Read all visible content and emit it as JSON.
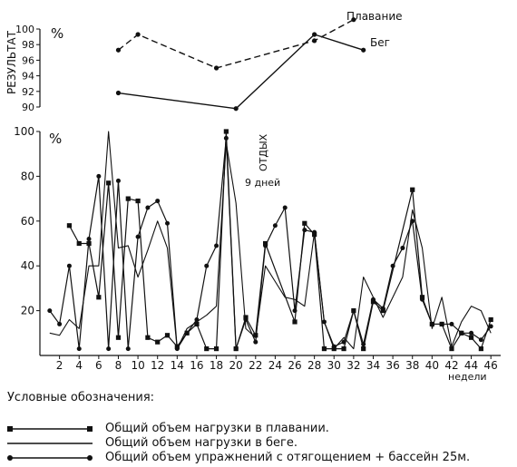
{
  "chart_data": [
    {
      "type": "line",
      "ylabel": "РЕЗУЛЬТАТ",
      "unit": "%",
      "ylim": [
        90,
        100
      ],
      "yticks": [
        90,
        92,
        94,
        96,
        98,
        100
      ],
      "series": [
        {
          "name": "Плавание",
          "style": "dashed",
          "x": [
            8,
            10,
            18,
            28,
            32
          ],
          "values": [
            97.3,
            99.3,
            95.0,
            98.5,
            101.2
          ]
        },
        {
          "name": "Бег",
          "style": "solid",
          "x": [
            8,
            20,
            28,
            33
          ],
          "values": [
            91.8,
            89.8,
            99.3,
            97.3
          ]
        }
      ]
    },
    {
      "type": "line",
      "xlabel": "недели",
      "unit": "%",
      "xlim": [
        0,
        47
      ],
      "ylim": [
        0,
        100
      ],
      "xticks": [
        "2",
        "4",
        "6",
        "8",
        "10",
        "12",
        "14",
        "16",
        "18",
        "20",
        "22",
        "24",
        "26",
        "28",
        "30",
        "32",
        "34",
        "36",
        "38",
        "40",
        "42",
        "44",
        "46"
      ],
      "yticks": [
        "20",
        "40",
        "60",
        "80",
        "100"
      ],
      "annotations": [
        "ОТДЫХ",
        "9 дней"
      ],
      "series": [
        {
          "name": "Общий объем нагрузки в плавании.",
          "marker": "square",
          "x": [
            3,
            4,
            5,
            6,
            7,
            8,
            9,
            10,
            11,
            12,
            13,
            14,
            15,
            16,
            17,
            18,
            19,
            20,
            21,
            22,
            23,
            26,
            27,
            28,
            29,
            30,
            31,
            32,
            33,
            34,
            35,
            38,
            39,
            40,
            41,
            42,
            43,
            44,
            45,
            46
          ],
          "values": [
            58,
            50,
            50,
            26,
            77,
            8,
            70,
            69,
            8,
            6,
            9,
            4,
            10,
            14,
            3,
            3,
            100,
            3,
            17,
            9,
            50,
            15,
            59,
            54,
            3,
            3,
            3,
            20,
            3,
            24,
            20,
            74,
            26,
            14,
            14,
            3,
            10,
            8,
            3,
            16
          ]
        },
        {
          "name": "Общий объем нагрузки в беге.",
          "marker": "none",
          "x": [
            1,
            2,
            3,
            4,
            5,
            6,
            7,
            8,
            9,
            10,
            11,
            12,
            13,
            14,
            15,
            16,
            17,
            18,
            19,
            20,
            21,
            22,
            23,
            24,
            25,
            26,
            27,
            28,
            29,
            30,
            31,
            32,
            33,
            34,
            35,
            36,
            37,
            38,
            39,
            40,
            41,
            42,
            43,
            44,
            45,
            46
          ],
          "values": [
            10,
            9,
            16,
            12,
            40,
            40,
            100,
            48,
            49,
            35,
            47,
            60,
            48,
            3,
            12,
            15,
            18,
            22,
            95,
            68,
            12,
            8,
            40,
            33,
            26,
            25,
            22,
            55,
            15,
            3,
            8,
            3,
            35,
            26,
            17,
            26,
            35,
            65,
            48,
            12,
            26,
            4,
            15,
            22,
            20,
            10
          ]
        },
        {
          "name": "Общий объем упражнений с отягощением + бассейн 25м.",
          "marker": "dot",
          "x": [
            1,
            2,
            3,
            4,
            5,
            6,
            7,
            8,
            9,
            10,
            11,
            12,
            13,
            14,
            15,
            16,
            17,
            18,
            19,
            20,
            21,
            22,
            23,
            24,
            25,
            26,
            27,
            28,
            29,
            30,
            31,
            32,
            33,
            34,
            35,
            36,
            37,
            38,
            39,
            40,
            41,
            42,
            43,
            44,
            45,
            46
          ],
          "values": [
            20,
            14,
            40,
            3,
            52,
            80,
            3,
            78,
            3,
            53,
            66,
            69,
            59,
            3,
            10,
            16,
            40,
            49,
            97,
            3,
            16,
            6,
            49,
            58,
            66,
            20,
            56,
            55,
            15,
            4,
            6,
            20,
            5,
            25,
            21,
            40,
            48,
            60,
            25,
            14,
            14,
            14,
            10,
            10,
            7,
            13
          ]
        }
      ]
    }
  ],
  "legend": {
    "title": "Условные обозначения:",
    "items": [
      "Общий объем нагрузки в плавании.",
      "Общий объем нагрузки в беге.",
      "Общий объем упражнений с отягощением + бассейн 25м."
    ]
  }
}
